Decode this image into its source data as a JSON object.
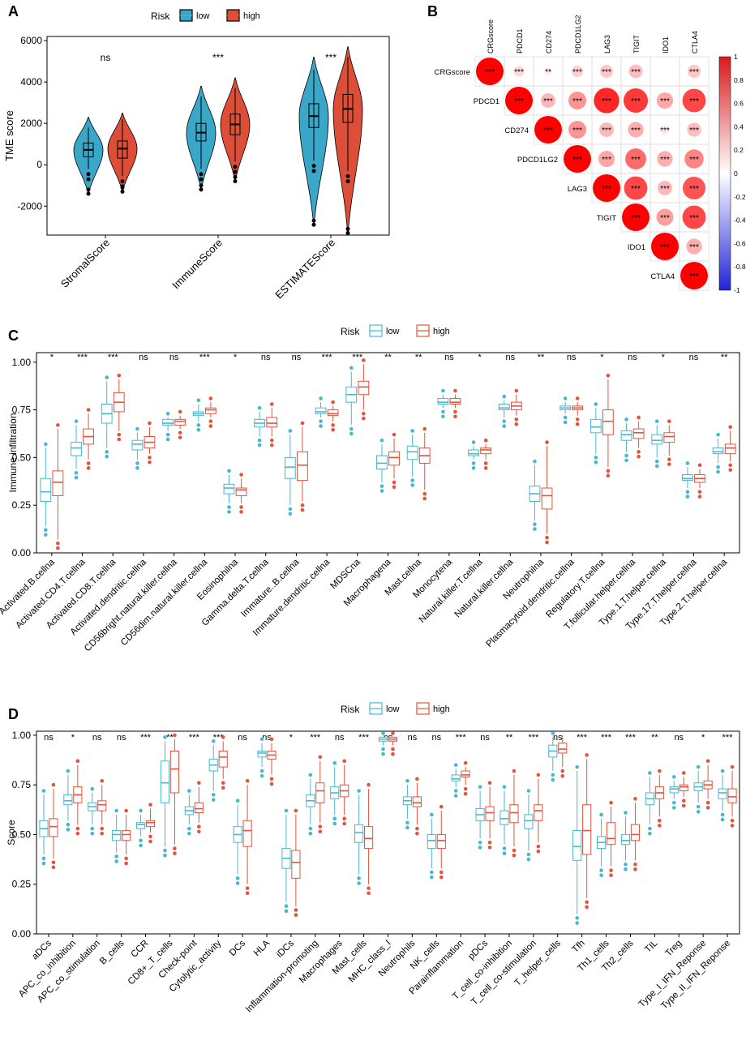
{
  "colors": {
    "low": "#48B8D0",
    "high": "#E5533C",
    "low_violin": "#3AA6C8",
    "high_violin": "#DC4E37"
  },
  "chart_data": [
    {
      "panel": "A",
      "type": "violin",
      "legend_title": "Risk",
      "legend_labels": [
        "low",
        "high"
      ],
      "ylabel": "TME score",
      "ylim": [
        -3400,
        6200
      ],
      "yticks": [
        -2000,
        0,
        2000,
        4000,
        6000
      ],
      "categories": [
        "StromalScore",
        "ImmuneScore",
        "ESTIMATEScore"
      ],
      "significance": [
        "ns",
        "***",
        "***"
      ],
      "series": [
        {
          "name": "low",
          "medians": [
            720,
            1550,
            2350
          ],
          "q1": [
            380,
            1150,
            1800
          ],
          "q3": [
            1050,
            2000,
            2950
          ],
          "whisker_low": [
            -200,
            -200,
            200
          ],
          "whisker_high": [
            1800,
            3300,
            4600
          ],
          "min": [
            -1400,
            -1200,
            -2900
          ],
          "max": [
            2300,
            3800,
            5200
          ]
        },
        {
          "name": "high",
          "medians": [
            780,
            1950,
            2700
          ],
          "q1": [
            320,
            1450,
            2050
          ],
          "q3": [
            1150,
            2450,
            3400
          ],
          "whisker_low": [
            -550,
            150,
            -300
          ],
          "whisker_high": [
            2200,
            3700,
            5200
          ],
          "min": [
            -1300,
            -800,
            -3300
          ],
          "max": [
            2500,
            4200,
            5700
          ]
        }
      ]
    },
    {
      "panel": "B",
      "type": "correlation",
      "variables": [
        "CRGscore",
        "PDCD1",
        "CD274",
        "PDCD1LG2",
        "LAG3",
        "TIGIT",
        "IDO1",
        "CTLA4"
      ],
      "matrix": [
        [
          1,
          0.15,
          0.08,
          0.18,
          0.22,
          0.25,
          0.01,
          0.22
        ],
        [
          0.15,
          1,
          0.28,
          0.42,
          0.85,
          0.78,
          0.35,
          0.72
        ],
        [
          0.08,
          0.28,
          1,
          0.42,
          0.28,
          0.32,
          0.1,
          0.26
        ],
        [
          0.18,
          0.42,
          0.42,
          1,
          0.35,
          0.58,
          0.32,
          0.48
        ],
        [
          0.22,
          0.85,
          0.28,
          0.35,
          1,
          0.72,
          0.28,
          0.68
        ],
        [
          0.25,
          0.78,
          0.32,
          0.58,
          0.72,
          1,
          0.38,
          0.72
        ],
        [
          0.01,
          0.35,
          0.1,
          0.32,
          0.28,
          0.38,
          1,
          0.32
        ],
        [
          0.22,
          0.72,
          0.26,
          0.48,
          0.68,
          0.72,
          0.32,
          1
        ]
      ],
      "stars": [
        [
          "***",
          "***",
          "**",
          "***",
          "***",
          "***",
          "",
          "***"
        ],
        [
          "",
          "***",
          "***",
          "***",
          "***",
          "***",
          "***",
          "***"
        ],
        [
          "",
          "",
          "***",
          "***",
          "***",
          "***",
          "***",
          "***"
        ],
        [
          "",
          "",
          "",
          "***",
          "***",
          "***",
          "***",
          "***"
        ],
        [
          "",
          "",
          "",
          "",
          "***",
          "***",
          "***",
          "***"
        ],
        [
          "",
          "",
          "",
          "",
          "",
          "***",
          "***",
          "***"
        ],
        [
          "",
          "",
          "",
          "",
          "",
          "",
          "***",
          "***"
        ],
        [
          "",
          "",
          "",
          "",
          "",
          "",
          "",
          "***"
        ]
      ],
      "colorbar_ticks": [
        "1",
        "0.8",
        "0.6",
        "0.4",
        "0.2",
        "0",
        "-0.2",
        "-0.4",
        "-0.6",
        "-0.8",
        "-1"
      ]
    },
    {
      "panel": "C",
      "type": "box",
      "legend_title": "Risk",
      "legend_labels": [
        "low",
        "high"
      ],
      "ylabel": "Immune infiltration",
      "ylim": [
        0,
        1.05
      ],
      "yticks": [
        "0.00",
        "0.25",
        "0.50",
        "0.75",
        "1.00"
      ],
      "categories": [
        "Activated.B.cellna",
        "Activated.CD4.T.cellna",
        "Activated.CD8.T.cellna",
        "Activated.dendritic.cellna",
        "CD56bright.natural.killer.cellna",
        "CD56dim.natural.killer.cellna",
        "Eosinophilna",
        "Gamma.delta.T.cellna",
        "Immature..B.cellna",
        "Immature.dendritic.cellna",
        "MDSCna",
        "Macrophagena",
        "Mast.cellna",
        "Monocytena",
        "Natural.killer.T.cellna",
        "Natural.killer.cellna",
        "Neutrophilna",
        "Plasmacytoid.dendritic.cellna",
        "Regulatory.T.cellna",
        "T.follicular.helper.cellna",
        "Type.1.T.helper.cellna",
        "Type.17.T.helper.cellna",
        "Type.2.T.helper.cellna"
      ],
      "significance": [
        "*",
        "***",
        "***",
        "ns",
        "ns",
        "***",
        "*",
        "ns",
        "ns",
        "***",
        "***",
        "**",
        "**",
        "ns",
        "*",
        "ns",
        "**",
        "ns",
        "*",
        "ns",
        "*",
        "ns",
        "**"
      ],
      "series": [
        {
          "name": "low",
          "q1": [
            0.27,
            0.51,
            0.68,
            0.54,
            0.67,
            0.72,
            0.31,
            0.66,
            0.39,
            0.73,
            0.79,
            0.44,
            0.49,
            0.78,
            0.51,
            0.75,
            0.27,
            0.75,
            0.63,
            0.59,
            0.57,
            0.38,
            0.52
          ],
          "median": [
            0.32,
            0.55,
            0.73,
            0.57,
            0.68,
            0.73,
            0.34,
            0.68,
            0.45,
            0.74,
            0.83,
            0.47,
            0.53,
            0.79,
            0.52,
            0.76,
            0.31,
            0.76,
            0.66,
            0.62,
            0.59,
            0.39,
            0.53
          ],
          "q3": [
            0.39,
            0.58,
            0.78,
            0.59,
            0.7,
            0.74,
            0.36,
            0.7,
            0.5,
            0.76,
            0.87,
            0.51,
            0.56,
            0.81,
            0.54,
            0.78,
            0.35,
            0.77,
            0.7,
            0.64,
            0.62,
            0.41,
            0.55
          ],
          "lo": [
            0.14,
            0.44,
            0.55,
            0.49,
            0.64,
            0.69,
            0.26,
            0.61,
            0.25,
            0.71,
            0.67,
            0.37,
            0.4,
            0.76,
            0.49,
            0.71,
            0.17,
            0.73,
            0.52,
            0.53,
            0.5,
            0.34,
            0.47
          ],
          "hi": [
            0.55,
            0.67,
            0.9,
            0.63,
            0.71,
            0.78,
            0.41,
            0.74,
            0.62,
            0.79,
            0.95,
            0.57,
            0.62,
            0.83,
            0.56,
            0.8,
            0.46,
            0.79,
            0.76,
            0.68,
            0.67,
            0.45,
            0.6
          ]
        },
        {
          "name": "high",
          "q1": [
            0.3,
            0.57,
            0.74,
            0.55,
            0.67,
            0.73,
            0.3,
            0.66,
            0.38,
            0.72,
            0.83,
            0.46,
            0.47,
            0.78,
            0.52,
            0.75,
            0.23,
            0.75,
            0.62,
            0.6,
            0.58,
            0.37,
            0.52
          ],
          "median": [
            0.37,
            0.61,
            0.79,
            0.58,
            0.69,
            0.75,
            0.33,
            0.68,
            0.46,
            0.73,
            0.87,
            0.5,
            0.51,
            0.79,
            0.54,
            0.77,
            0.3,
            0.76,
            0.69,
            0.63,
            0.61,
            0.39,
            0.55
          ],
          "q3": [
            0.43,
            0.65,
            0.84,
            0.61,
            0.7,
            0.76,
            0.34,
            0.71,
            0.53,
            0.75,
            0.9,
            0.53,
            0.55,
            0.81,
            0.55,
            0.79,
            0.34,
            0.77,
            0.75,
            0.65,
            0.63,
            0.41,
            0.57
          ],
          "lo": [
            0.07,
            0.49,
            0.64,
            0.52,
            0.65,
            0.71,
            0.26,
            0.61,
            0.27,
            0.69,
            0.75,
            0.39,
            0.33,
            0.76,
            0.49,
            0.72,
            0.1,
            0.72,
            0.45,
            0.55,
            0.51,
            0.34,
            0.48
          ],
          "hi": [
            0.65,
            0.73,
            0.91,
            0.66,
            0.72,
            0.79,
            0.39,
            0.76,
            0.66,
            0.77,
            0.99,
            0.6,
            0.63,
            0.83,
            0.57,
            0.83,
            0.56,
            0.79,
            0.91,
            0.69,
            0.67,
            0.44,
            0.64
          ]
        }
      ]
    },
    {
      "panel": "D",
      "type": "box",
      "legend_title": "Risk",
      "legend_labels": [
        "low",
        "high"
      ],
      "ylabel": "Score",
      "ylim": [
        0,
        1.02
      ],
      "yticks": [
        "0.00",
        "0.25",
        "0.50",
        "0.75",
        "1.00"
      ],
      "categories": [
        "aDCs",
        "APC_co_inhibition",
        "APC_co_stimulation",
        "B_cells",
        "CCR",
        "CD8+_T_cells",
        "Check-point",
        "Cytolytic_activity",
        "DCs",
        "HLA",
        "iDCs",
        "Inflammation-promoting",
        "Macrophages",
        "Mast_cells",
        "MHC_class_I",
        "Neutrophils",
        "NK_cells",
        "Parainflammation",
        "pDCs",
        "T_cell_co-inhibition",
        "T_cell_co-stimulation",
        "T_helper_cells",
        "Tfh",
        "Th1_cells",
        "Th2_cells",
        "TIL",
        "Treg",
        "Type_I_IFN_Reponse",
        "Type_II_IFN_Reponse"
      ],
      "significance": [
        "ns",
        "*",
        "ns",
        "ns",
        "***",
        "**",
        "***",
        "***",
        "ns",
        "ns",
        "*",
        "***",
        "ns",
        "***",
        "ns",
        "ns",
        "ns",
        "***",
        "ns",
        "**",
        "***",
        "ns",
        "***",
        "***",
        "***",
        "**",
        "ns",
        "*",
        "***"
      ],
      "series": [
        {
          "name": "low",
          "q1": [
            0.49,
            0.65,
            0.62,
            0.47,
            0.53,
            0.66,
            0.6,
            0.82,
            0.46,
            0.89,
            0.33,
            0.64,
            0.68,
            0.46,
            0.97,
            0.65,
            0.43,
            0.77,
            0.57,
            0.55,
            0.53,
            0.89,
            0.37,
            0.43,
            0.45,
            0.65,
            0.71,
            0.72,
            0.68
          ],
          "median": [
            0.53,
            0.67,
            0.64,
            0.5,
            0.55,
            0.76,
            0.62,
            0.85,
            0.5,
            0.91,
            0.38,
            0.67,
            0.71,
            0.51,
            0.98,
            0.67,
            0.47,
            0.78,
            0.6,
            0.58,
            0.57,
            0.92,
            0.44,
            0.46,
            0.47,
            0.68,
            0.73,
            0.74,
            0.71
          ],
          "q3": [
            0.57,
            0.7,
            0.66,
            0.52,
            0.56,
            0.87,
            0.64,
            0.88,
            0.54,
            0.92,
            0.43,
            0.7,
            0.74,
            0.55,
            0.99,
            0.69,
            0.5,
            0.8,
            0.63,
            0.62,
            0.6,
            0.95,
            0.52,
            0.49,
            0.5,
            0.71,
            0.74,
            0.76,
            0.73
          ],
          "lo": [
            0.4,
            0.57,
            0.55,
            0.41,
            0.49,
            0.44,
            0.55,
            0.72,
            0.3,
            0.84,
            0.16,
            0.55,
            0.6,
            0.3,
            0.95,
            0.58,
            0.33,
            0.74,
            0.48,
            0.45,
            0.42,
            0.82,
            0.1,
            0.34,
            0.37,
            0.55,
            0.68,
            0.66,
            0.62
          ],
          "hi": [
            0.7,
            0.8,
            0.71,
            0.6,
            0.6,
            0.97,
            0.7,
            0.95,
            0.65,
            0.96,
            0.6,
            0.78,
            0.84,
            0.7,
            0.99,
            0.75,
            0.58,
            0.83,
            0.72,
            0.72,
            0.7,
            0.99,
            0.82,
            0.58,
            0.59,
            0.79,
            0.77,
            0.82,
            0.8
          ]
        },
        {
          "name": "high",
          "q1": [
            0.49,
            0.66,
            0.62,
            0.47,
            0.54,
            0.71,
            0.61,
            0.84,
            0.44,
            0.88,
            0.28,
            0.66,
            0.69,
            0.43,
            0.97,
            0.64,
            0.43,
            0.79,
            0.57,
            0.56,
            0.57,
            0.91,
            0.4,
            0.45,
            0.47,
            0.68,
            0.72,
            0.73,
            0.66
          ],
          "median": [
            0.54,
            0.7,
            0.65,
            0.5,
            0.56,
            0.83,
            0.63,
            0.89,
            0.52,
            0.9,
            0.36,
            0.72,
            0.72,
            0.48,
            0.98,
            0.66,
            0.47,
            0.8,
            0.61,
            0.61,
            0.62,
            0.93,
            0.52,
            0.48,
            0.5,
            0.71,
            0.74,
            0.75,
            0.69
          ],
          "q3": [
            0.58,
            0.74,
            0.67,
            0.52,
            0.57,
            0.92,
            0.66,
            0.92,
            0.57,
            0.92,
            0.42,
            0.76,
            0.75,
            0.54,
            0.99,
            0.69,
            0.5,
            0.82,
            0.64,
            0.65,
            0.65,
            0.96,
            0.65,
            0.56,
            0.55,
            0.74,
            0.75,
            0.77,
            0.73
          ],
          "lo": [
            0.38,
            0.55,
            0.55,
            0.4,
            0.51,
            0.45,
            0.56,
            0.78,
            0.25,
            0.8,
            0.14,
            0.56,
            0.6,
            0.25,
            0.95,
            0.55,
            0.33,
            0.75,
            0.48,
            0.44,
            0.46,
            0.84,
            0.18,
            0.34,
            0.37,
            0.59,
            0.69,
            0.68,
            0.59
          ],
          "hi": [
            0.73,
            0.85,
            0.75,
            0.6,
            0.63,
            0.98,
            0.74,
            0.97,
            0.75,
            0.96,
            0.6,
            0.87,
            0.85,
            0.73,
            0.99,
            0.76,
            0.62,
            0.84,
            0.74,
            0.8,
            0.78,
            1.0,
            0.88,
            0.64,
            0.66,
            0.8,
            0.79,
            0.85,
            0.82
          ]
        }
      ]
    }
  ]
}
